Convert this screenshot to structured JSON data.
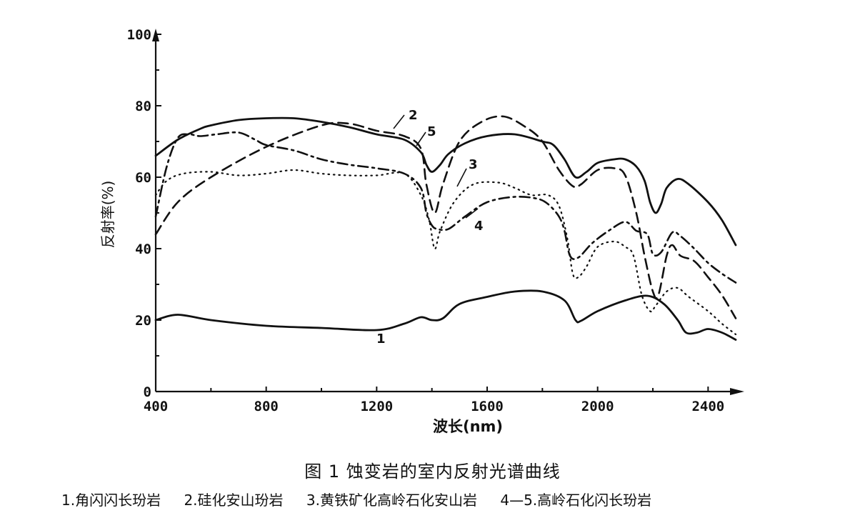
{
  "chart_data": {
    "type": "line",
    "xlabel": "波长(nm)",
    "ylabel": "反射率(%)",
    "xlim": [
      400,
      2500
    ],
    "ylim": [
      0,
      100
    ],
    "x_ticks": [
      400,
      800,
      1200,
      1600,
      2000,
      2400
    ],
    "y_ticks": [
      0,
      20,
      40,
      60,
      80,
      100
    ],
    "grid": false,
    "legend": "caption-below",
    "series": [
      {
        "name": "1",
        "style": "solid",
        "points": [
          [
            400,
            20
          ],
          [
            480,
            21.5
          ],
          [
            600,
            20
          ],
          [
            800,
            18.4
          ],
          [
            1000,
            17.8
          ],
          [
            1200,
            17.2
          ],
          [
            1300,
            19
          ],
          [
            1360,
            20.8
          ],
          [
            1400,
            20
          ],
          [
            1440,
            20.5
          ],
          [
            1500,
            24.5
          ],
          [
            1600,
            26.5
          ],
          [
            1700,
            28
          ],
          [
            1800,
            28
          ],
          [
            1880,
            25.5
          ],
          [
            1920,
            20
          ],
          [
            1940,
            19.8
          ],
          [
            2000,
            22.5
          ],
          [
            2100,
            25.5
          ],
          [
            2180,
            26.8
          ],
          [
            2240,
            24.5
          ],
          [
            2290,
            20
          ],
          [
            2320,
            16.5
          ],
          [
            2360,
            16.5
          ],
          [
            2400,
            17.5
          ],
          [
            2450,
            16.5
          ],
          [
            2500,
            14.5
          ]
        ]
      },
      {
        "name": "2",
        "style": "dashed",
        "points": [
          [
            400,
            44
          ],
          [
            480,
            53
          ],
          [
            600,
            60
          ],
          [
            800,
            68.5
          ],
          [
            1000,
            74.5
          ],
          [
            1100,
            75
          ],
          [
            1200,
            73
          ],
          [
            1300,
            71.5
          ],
          [
            1360,
            68
          ],
          [
            1380,
            58
          ],
          [
            1410,
            50
          ],
          [
            1440,
            58
          ],
          [
            1500,
            70
          ],
          [
            1580,
            75.5
          ],
          [
            1660,
            77
          ],
          [
            1740,
            74
          ],
          [
            1800,
            70
          ],
          [
            1860,
            62
          ],
          [
            1910,
            57.5
          ],
          [
            1940,
            58
          ],
          [
            2000,
            62
          ],
          [
            2060,
            62.5
          ],
          [
            2100,
            60.5
          ],
          [
            2140,
            50
          ],
          [
            2170,
            38
          ],
          [
            2200,
            28
          ],
          [
            2220,
            27
          ],
          [
            2250,
            38
          ],
          [
            2270,
            41
          ],
          [
            2300,
            38
          ],
          [
            2350,
            36.5
          ],
          [
            2400,
            32
          ],
          [
            2450,
            27
          ],
          [
            2500,
            20.5
          ]
        ]
      },
      {
        "name": "3",
        "style": "dotted",
        "points": [
          [
            400,
            55
          ],
          [
            440,
            59
          ],
          [
            500,
            61
          ],
          [
            600,
            61.5
          ],
          [
            700,
            60.5
          ],
          [
            800,
            61
          ],
          [
            900,
            62
          ],
          [
            1000,
            61
          ],
          [
            1100,
            60.5
          ],
          [
            1200,
            60.5
          ],
          [
            1300,
            61
          ],
          [
            1360,
            55
          ],
          [
            1390,
            48
          ],
          [
            1410,
            40
          ],
          [
            1430,
            45
          ],
          [
            1480,
            53
          ],
          [
            1550,
            58
          ],
          [
            1640,
            58.5
          ],
          [
            1700,
            57
          ],
          [
            1760,
            55
          ],
          [
            1820,
            55
          ],
          [
            1860,
            52
          ],
          [
            1890,
            43
          ],
          [
            1910,
            33
          ],
          [
            1930,
            32
          ],
          [
            1960,
            35
          ],
          [
            2000,
            40.5
          ],
          [
            2060,
            42
          ],
          [
            2100,
            40.5
          ],
          [
            2130,
            38
          ],
          [
            2160,
            27
          ],
          [
            2190,
            22.5
          ],
          [
            2210,
            24
          ],
          [
            2250,
            28
          ],
          [
            2290,
            29
          ],
          [
            2330,
            26.5
          ],
          [
            2400,
            22.5
          ],
          [
            2450,
            19
          ],
          [
            2500,
            16
          ]
        ]
      },
      {
        "name": "4",
        "style": "dash-dot",
        "points": [
          [
            400,
            49
          ],
          [
            440,
            63
          ],
          [
            480,
            71
          ],
          [
            520,
            72
          ],
          [
            560,
            71.5
          ],
          [
            620,
            72
          ],
          [
            700,
            72.5
          ],
          [
            760,
            70.5
          ],
          [
            800,
            69
          ],
          [
            900,
            67.5
          ],
          [
            1000,
            65
          ],
          [
            1100,
            63.5
          ],
          [
            1200,
            62.5
          ],
          [
            1300,
            61
          ],
          [
            1360,
            57
          ],
          [
            1380,
            50
          ],
          [
            1400,
            46.5
          ],
          [
            1420,
            45.5
          ],
          [
            1460,
            45.5
          ],
          [
            1520,
            49
          ],
          [
            1600,
            53
          ],
          [
            1700,
            54.5
          ],
          [
            1780,
            54
          ],
          [
            1820,
            52.5
          ],
          [
            1860,
            49
          ],
          [
            1880,
            45
          ],
          [
            1900,
            38
          ],
          [
            1930,
            37.5
          ],
          [
            1980,
            41.5
          ],
          [
            2040,
            45
          ],
          [
            2100,
            47.5
          ],
          [
            2140,
            45
          ],
          [
            2180,
            44
          ],
          [
            2200,
            38.5
          ],
          [
            2230,
            39
          ],
          [
            2270,
            44.5
          ],
          [
            2300,
            43.5
          ],
          [
            2350,
            40
          ],
          [
            2400,
            36
          ],
          [
            2450,
            33
          ],
          [
            2500,
            30.5
          ]
        ]
      },
      {
        "name": "5",
        "style": "solid",
        "points": [
          [
            400,
            66
          ],
          [
            480,
            70.5
          ],
          [
            560,
            73.5
          ],
          [
            600,
            74.5
          ],
          [
            700,
            76
          ],
          [
            800,
            76.5
          ],
          [
            900,
            76.5
          ],
          [
            1000,
            75.5
          ],
          [
            1100,
            74
          ],
          [
            1200,
            72
          ],
          [
            1300,
            70.5
          ],
          [
            1360,
            67
          ],
          [
            1380,
            63.5
          ],
          [
            1400,
            61.5
          ],
          [
            1430,
            63.5
          ],
          [
            1460,
            66.5
          ],
          [
            1520,
            69.5
          ],
          [
            1600,
            71.5
          ],
          [
            1700,
            72
          ],
          [
            1800,
            70
          ],
          [
            1840,
            69
          ],
          [
            1880,
            65
          ],
          [
            1920,
            60
          ],
          [
            1960,
            61.5
          ],
          [
            2000,
            64
          ],
          [
            2060,
            65
          ],
          [
            2100,
            65
          ],
          [
            2140,
            63
          ],
          [
            2170,
            59
          ],
          [
            2190,
            53
          ],
          [
            2210,
            50
          ],
          [
            2230,
            52.5
          ],
          [
            2250,
            57
          ],
          [
            2290,
            59.5
          ],
          [
            2330,
            58
          ],
          [
            2400,
            53
          ],
          [
            2450,
            48
          ],
          [
            2500,
            41
          ]
        ]
      }
    ],
    "curve_labels": [
      "1",
      "2",
      "3",
      "4",
      "5"
    ]
  },
  "caption": "图 1   蚀变岩的室内反射光谱曲线",
  "legend_items": [
    "1.角闪闪长玢岩",
    "2.硅化安山玢岩",
    "3.黄铁矿化高岭石化安山岩",
    "4—5.高岭石化闪长玢岩"
  ]
}
